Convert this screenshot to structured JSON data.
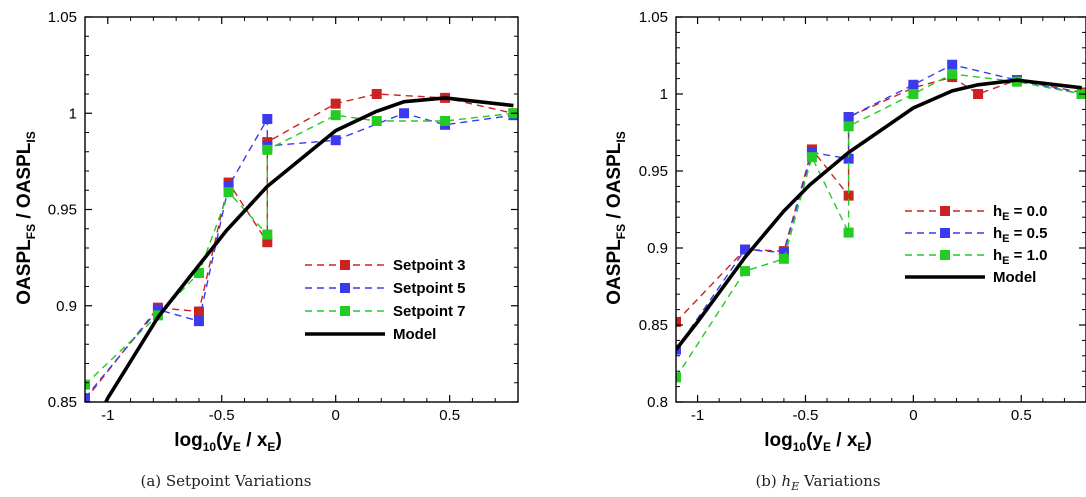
{
  "figure": {
    "panels": [
      {
        "caption": "(a) Setpoint Variations",
        "ylabel_main": "OASPL",
        "ylabel_sub1": "FS",
        "ylabel_sep": " / OASPL",
        "ylabel_sub2": "IS",
        "xlabel_main1": "log",
        "xlabel_sub1": "10",
        "xlabel_main2": "(y",
        "xlabel_sub2": "E",
        "xlabel_main3": " / x",
        "xlabel_sub3": "E",
        "xlabel_main4": ")"
      },
      {
        "caption_prefix": "(b) ",
        "caption_math": "h",
        "caption_math_sub": "E",
        "caption_suffix": " Variations",
        "ylabel_main": "OASPL",
        "ylabel_sub1": "FS",
        "ylabel_sep": " / OASPL",
        "ylabel_sub2": "IS",
        "xlabel_main1": "log",
        "xlabel_sub1": "10",
        "xlabel_main2": "(y",
        "xlabel_sub2": "E",
        "xlabel_main3": " / x",
        "xlabel_sub3": "E",
        "xlabel_main4": ")"
      }
    ]
  },
  "chart_data": [
    {
      "type": "line",
      "xlim": [
        -1.1,
        0.8
      ],
      "ylim": [
        0.85,
        1.05
      ],
      "xticks": [
        -1,
        -0.5,
        0,
        0.5
      ],
      "xtick_labels": [
        "-1",
        "-0.5",
        "0",
        "0.5"
      ],
      "yticks": [
        0.85,
        0.9,
        0.95,
        1,
        1.05
      ],
      "ytick_labels": [
        "0.85",
        "0.9",
        "0.95",
        "1",
        "1.05"
      ],
      "legend_position": "lower-right",
      "series": [
        {
          "name": "Setpoint 3",
          "color": "#cc2222",
          "style": "dashed-markers",
          "x": [
            -1.1,
            -0.78,
            -0.6,
            -0.47,
            -0.3,
            -0.3,
            0.0,
            0.18,
            0.48,
            0.78
          ],
          "y": [
            0.851,
            0.899,
            0.897,
            0.964,
            0.933,
            0.985,
            1.005,
            1.01,
            1.008,
            1.0
          ]
        },
        {
          "name": "Setpoint 5",
          "color": "#3a3aee",
          "style": "dashed-markers",
          "x": [
            -1.1,
            -0.78,
            -0.6,
            -0.47,
            -0.3,
            -0.3,
            0.0,
            0.3,
            0.48,
            0.78
          ],
          "y": [
            0.852,
            0.898,
            0.892,
            0.962,
            0.997,
            0.983,
            0.986,
            1.0,
            0.994,
            0.999
          ]
        },
        {
          "name": "Setpoint 7",
          "color": "#22cc22",
          "style": "dashed-markers",
          "x": [
            -1.1,
            -0.78,
            -0.6,
            -0.47,
            -0.3,
            -0.3,
            0.0,
            0.18,
            0.48,
            0.78
          ],
          "y": [
            0.859,
            0.895,
            0.917,
            0.959,
            0.937,
            0.981,
            0.999,
            0.996,
            0.996,
            1.0
          ]
        },
        {
          "name": "Model",
          "color": "#000000",
          "style": "solid",
          "x": [
            -1.1,
            -1.0,
            -0.78,
            -0.6,
            -0.48,
            -0.3,
            0.0,
            0.18,
            0.3,
            0.48,
            0.78
          ],
          "y": [
            0.828,
            0.852,
            0.894,
            0.921,
            0.939,
            0.962,
            0.991,
            1.001,
            1.006,
            1.008,
            1.004
          ]
        }
      ]
    },
    {
      "type": "line",
      "xlim": [
        -1.1,
        0.8
      ],
      "ylim": [
        0.8,
        1.05
      ],
      "xticks": [
        -1,
        -0.5,
        0,
        0.5
      ],
      "xtick_labels": [
        "-1",
        "-0.5",
        "0",
        "0.5"
      ],
      "yticks": [
        0.8,
        0.85,
        0.9,
        0.95,
        1,
        1.05
      ],
      "ytick_labels": [
        "0.8",
        "0.85",
        "0.9",
        "0.95",
        "1",
        "1.05"
      ],
      "legend_position": "right",
      "series": [
        {
          "name": "h",
          "name_sub": "E",
          "name_suffix": " = 0.0",
          "color": "#cc2222",
          "style": "dashed-markers",
          "x": [
            -1.1,
            -0.78,
            -0.6,
            -0.47,
            -0.3,
            -0.3,
            0.0,
            0.18,
            0.3,
            0.48,
            0.78
          ],
          "y": [
            0.852,
            0.899,
            0.898,
            0.964,
            0.934,
            0.985,
            1.004,
            1.011,
            1.0,
            1.009,
            1.001
          ]
        },
        {
          "name": "h",
          "name_sub": "E",
          "name_suffix": " = 0.5",
          "color": "#3a3aee",
          "style": "dashed-markers",
          "x": [
            -1.1,
            -0.78,
            -0.6,
            -0.47,
            -0.3,
            -0.3,
            0.0,
            0.18,
            0.48,
            0.78
          ],
          "y": [
            0.834,
            0.899,
            0.897,
            0.962,
            0.958,
            0.985,
            1.006,
            1.019,
            1.009,
            1.0
          ]
        },
        {
          "name": "h",
          "name_sub": "E",
          "name_suffix": " = 1.0",
          "color": "#22cc22",
          "style": "dashed-markers",
          "x": [
            -1.1,
            -0.78,
            -0.6,
            -0.47,
            -0.3,
            -0.3,
            0.0,
            0.18,
            0.48,
            0.78
          ],
          "y": [
            0.816,
            0.885,
            0.893,
            0.959,
            0.91,
            0.979,
            1.0,
            1.013,
            1.008,
            1.0
          ]
        },
        {
          "name": "Model",
          "color": "#000000",
          "style": "solid",
          "x": [
            -1.1,
            -1.0,
            -0.78,
            -0.6,
            -0.48,
            -0.3,
            0.0,
            0.18,
            0.3,
            0.48,
            0.78
          ],
          "y": [
            0.834,
            0.852,
            0.894,
            0.924,
            0.941,
            0.962,
            0.991,
            1.002,
            1.006,
            1.009,
            1.004
          ]
        }
      ]
    }
  ]
}
